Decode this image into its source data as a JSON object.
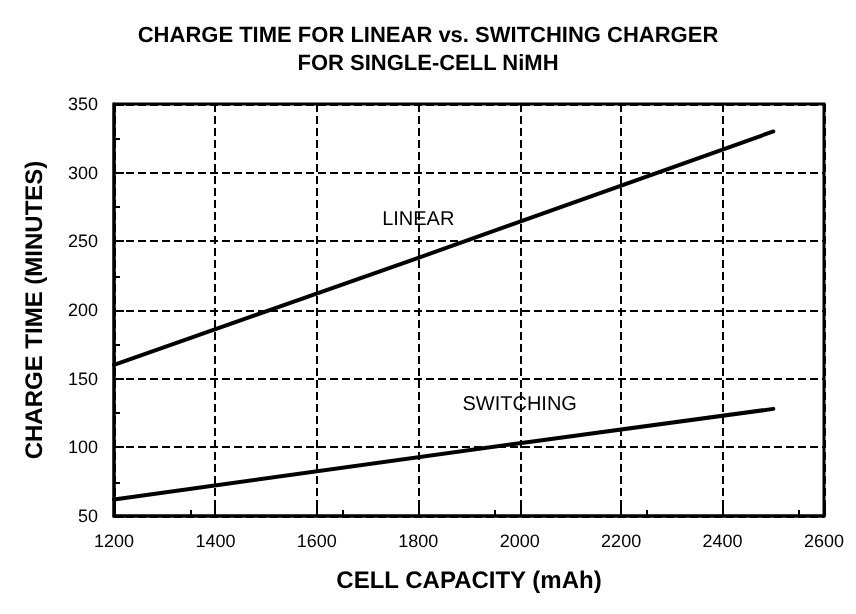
{
  "chart_data": {
    "type": "line",
    "title": "CHARGE TIME FOR LINEAR vs. SWITCHING CHARGER\nFOR SINGLE-CELL NiMH",
    "xlabel": "CELL CAPACITY (mAh)",
    "ylabel": "CHARGE TIME (MINUTES)",
    "series": [
      {
        "name": "LINEAR",
        "color": "#000000",
        "x": [
          1200,
          1800,
          2500
        ],
        "values": [
          160,
          238,
          330
        ]
      },
      {
        "name": "SWITCHING",
        "color": "#000000",
        "x": [
          1200,
          2000,
          2500
        ],
        "values": [
          62,
          103,
          128
        ]
      }
    ],
    "xlim": [
      1200,
      2600
    ],
    "xticks": [
      1200,
      1400,
      1600,
      1800,
      2000,
      2200,
      2400,
      2600
    ],
    "ylim": [
      50,
      350
    ],
    "yticks": [
      50,
      100,
      150,
      200,
      250,
      300,
      350
    ],
    "grid": true,
    "legend": false,
    "marker": "none",
    "line_style": "solid"
  }
}
